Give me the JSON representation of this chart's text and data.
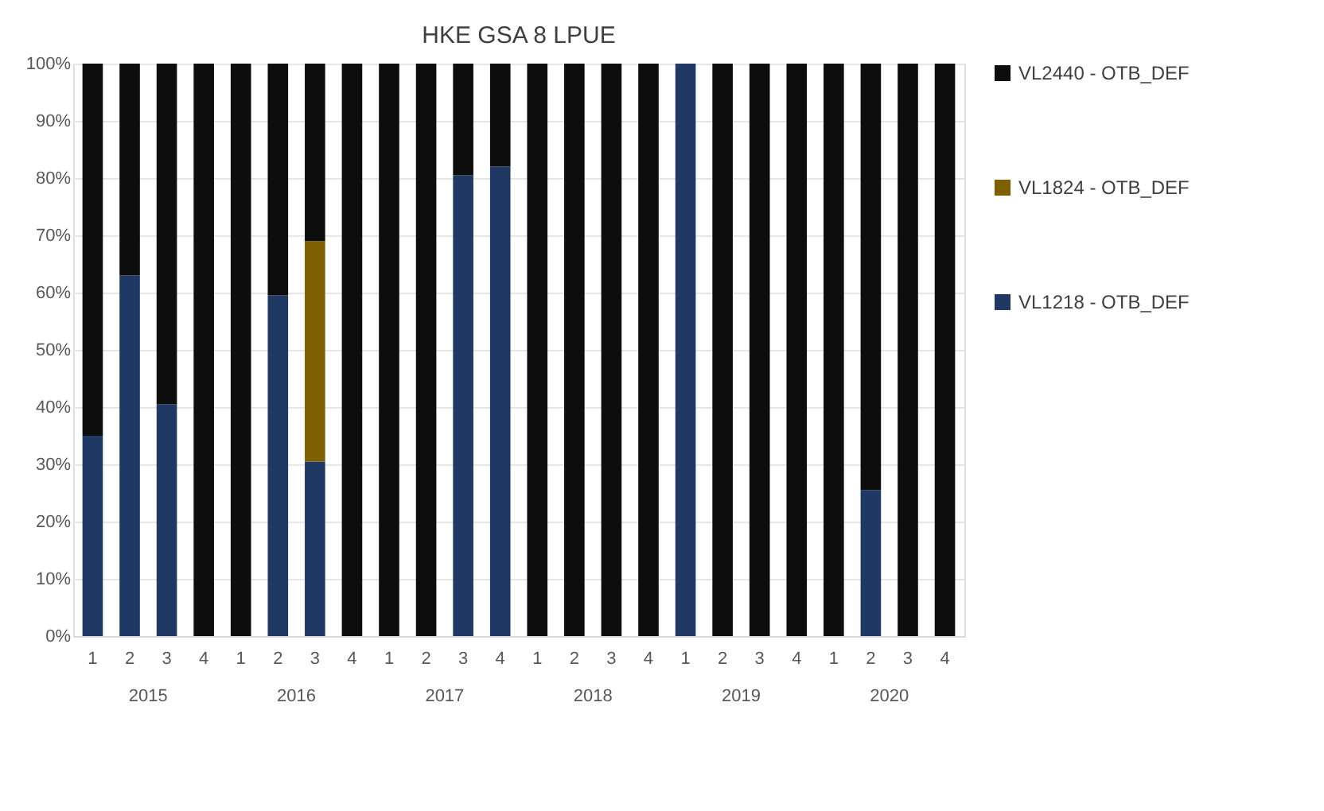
{
  "chart_data": {
    "type": "bar",
    "stacked": true,
    "title": "HKE GSA 8 LPUE",
    "categories": [
      "1",
      "2",
      "3",
      "4",
      "1",
      "2",
      "3",
      "4",
      "1",
      "2",
      "3",
      "4",
      "1",
      "2",
      "3",
      "4",
      "1",
      "2",
      "3",
      "4",
      "1",
      "2",
      "3",
      "4"
    ],
    "annotations": [
      "2015",
      "2016",
      "2017",
      "2018",
      "2019",
      "2020"
    ],
    "series": [
      {
        "name": "VL1218 - OTB_DEF",
        "color": "#1f3864",
        "values": [
          35,
          63,
          40.5,
          null,
          null,
          59.5,
          30.5,
          null,
          null,
          null,
          80.5,
          82,
          null,
          null,
          null,
          null,
          100,
          null,
          null,
          null,
          null,
          25.5,
          null,
          null
        ]
      },
      {
        "name": "VL1824 - OTB_DEF",
        "color": "#7f6000",
        "values": [
          null,
          null,
          null,
          null,
          null,
          null,
          38.5,
          null,
          null,
          null,
          null,
          null,
          null,
          null,
          null,
          null,
          null,
          null,
          null,
          null,
          null,
          null,
          null,
          null
        ]
      },
      {
        "name": "VL2440 - OTB_DEF",
        "color": "#0d0d0d",
        "values": [
          65,
          37,
          59.5,
          100,
          100,
          40.5,
          31,
          100,
          100,
          100,
          19.5,
          18,
          100,
          100,
          100,
          100,
          null,
          100,
          100,
          100,
          100,
          74.5,
          100,
          100
        ]
      }
    ],
    "ylim": [
      0,
      100
    ],
    "yticks": [
      {
        "value": 0,
        "label": "0%"
      },
      {
        "value": 10,
        "label": "10%"
      },
      {
        "value": 20,
        "label": "20%"
      },
      {
        "value": 30,
        "label": "30%"
      },
      {
        "value": 40,
        "label": "40%"
      },
      {
        "value": 50,
        "label": "50%"
      },
      {
        "value": 60,
        "label": "60%"
      },
      {
        "value": 70,
        "label": "70%"
      },
      {
        "value": 80,
        "label": "80%"
      },
      {
        "value": 90,
        "label": "90%"
      },
      {
        "value": 100,
        "label": "100%"
      }
    ],
    "grid": "y",
    "legend": "right"
  }
}
